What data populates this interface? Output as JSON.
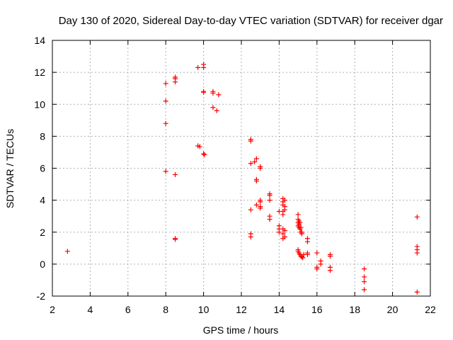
{
  "chart_data": {
    "type": "scatter",
    "title": "Day 130 of 2020, Sidereal Day-to-day VTEC variation (SDTVAR) for receiver dgar",
    "xlabel": "GPS time / hours",
    "ylabel": "SDTVAR / TECUs",
    "xlim": [
      2,
      22
    ],
    "ylim": [
      -2,
      14
    ],
    "xticks": [
      2,
      4,
      6,
      8,
      10,
      12,
      14,
      16,
      18,
      20,
      22
    ],
    "yticks": [
      -2,
      0,
      2,
      4,
      6,
      8,
      10,
      12,
      14
    ],
    "grid": true,
    "marker": "plus",
    "color": "#ff0000",
    "series": [
      {
        "name": "SDTVAR",
        "points": [
          [
            2.8,
            0.8
          ],
          [
            8.0,
            11.3
          ],
          [
            8.0,
            10.2
          ],
          [
            8.0,
            8.8
          ],
          [
            8.0,
            5.8
          ],
          [
            8.5,
            11.7
          ],
          [
            8.5,
            11.6
          ],
          [
            8.5,
            11.4
          ],
          [
            8.5,
            5.6
          ],
          [
            8.5,
            1.6
          ],
          [
            8.5,
            1.55
          ],
          [
            9.7,
            12.3
          ],
          [
            9.7,
            7.4
          ],
          [
            9.8,
            7.35
          ],
          [
            10.0,
            12.5
          ],
          [
            10.0,
            12.3
          ],
          [
            10.0,
            10.8
          ],
          [
            10.0,
            10.75
          ],
          [
            10.0,
            6.9
          ],
          [
            10.05,
            6.85
          ],
          [
            10.5,
            10.8
          ],
          [
            10.5,
            10.7
          ],
          [
            10.5,
            9.8
          ],
          [
            10.7,
            9.6
          ],
          [
            10.8,
            10.6
          ],
          [
            12.5,
            7.8
          ],
          [
            12.5,
            7.7
          ],
          [
            12.5,
            6.3
          ],
          [
            12.5,
            3.4
          ],
          [
            12.5,
            1.9
          ],
          [
            12.5,
            1.7
          ],
          [
            12.7,
            6.4
          ],
          [
            12.8,
            6.6
          ],
          [
            12.8,
            5.3
          ],
          [
            12.8,
            5.2
          ],
          [
            12.8,
            3.7
          ],
          [
            13.0,
            6.1
          ],
          [
            13.0,
            6.0
          ],
          [
            13.0,
            4.0
          ],
          [
            13.0,
            3.9
          ],
          [
            13.0,
            3.6
          ],
          [
            13.0,
            3.5
          ],
          [
            13.5,
            4.4
          ],
          [
            13.5,
            4.3
          ],
          [
            13.5,
            4.0
          ],
          [
            13.5,
            3.0
          ],
          [
            13.5,
            2.8
          ],
          [
            14.0,
            3.3
          ],
          [
            14.0,
            2.4
          ],
          [
            14.0,
            2.2
          ],
          [
            14.0,
            2.0
          ],
          [
            14.2,
            4.1
          ],
          [
            14.2,
            3.9
          ],
          [
            14.2,
            3.7
          ],
          [
            14.2,
            3.3
          ],
          [
            14.2,
            3.1
          ],
          [
            14.2,
            2.2
          ],
          [
            14.2,
            1.9
          ],
          [
            14.2,
            1.6
          ],
          [
            14.3,
            4.0
          ],
          [
            14.3,
            3.6
          ],
          [
            14.3,
            3.4
          ],
          [
            14.3,
            2.1
          ],
          [
            14.3,
            1.7
          ],
          [
            15.0,
            3.1
          ],
          [
            15.0,
            2.8
          ],
          [
            15.0,
            2.6
          ],
          [
            15.0,
            2.4
          ],
          [
            15.0,
            0.9
          ],
          [
            15.0,
            0.8
          ],
          [
            15.05,
            2.7
          ],
          [
            15.05,
            2.5
          ],
          [
            15.05,
            2.3
          ],
          [
            15.05,
            0.7
          ],
          [
            15.1,
            2.6
          ],
          [
            15.1,
            2.2
          ],
          [
            15.1,
            0.6
          ],
          [
            15.15,
            2.3
          ],
          [
            15.15,
            2.0
          ],
          [
            15.15,
            0.5
          ],
          [
            15.2,
            2.0
          ],
          [
            15.2,
            1.9
          ],
          [
            15.2,
            0.45
          ],
          [
            15.25,
            0.4
          ],
          [
            15.3,
            0.6
          ],
          [
            15.5,
            1.6
          ],
          [
            15.5,
            1.4
          ],
          [
            15.5,
            0.7
          ],
          [
            15.5,
            0.6
          ],
          [
            16.0,
            0.7
          ],
          [
            16.0,
            -0.2
          ],
          [
            16.0,
            -0.3
          ],
          [
            16.2,
            0.2
          ],
          [
            16.2,
            0.0
          ],
          [
            16.7,
            0.6
          ],
          [
            16.7,
            0.5
          ],
          [
            16.7,
            -0.2
          ],
          [
            16.7,
            -0.4
          ],
          [
            18.5,
            -0.3
          ],
          [
            18.5,
            -0.8
          ],
          [
            18.5,
            -1.1
          ],
          [
            18.5,
            -1.6
          ],
          [
            21.3,
            2.95
          ],
          [
            21.3,
            1.1
          ],
          [
            21.3,
            0.9
          ],
          [
            21.3,
            0.7
          ],
          [
            21.3,
            -1.75
          ]
        ]
      }
    ]
  }
}
